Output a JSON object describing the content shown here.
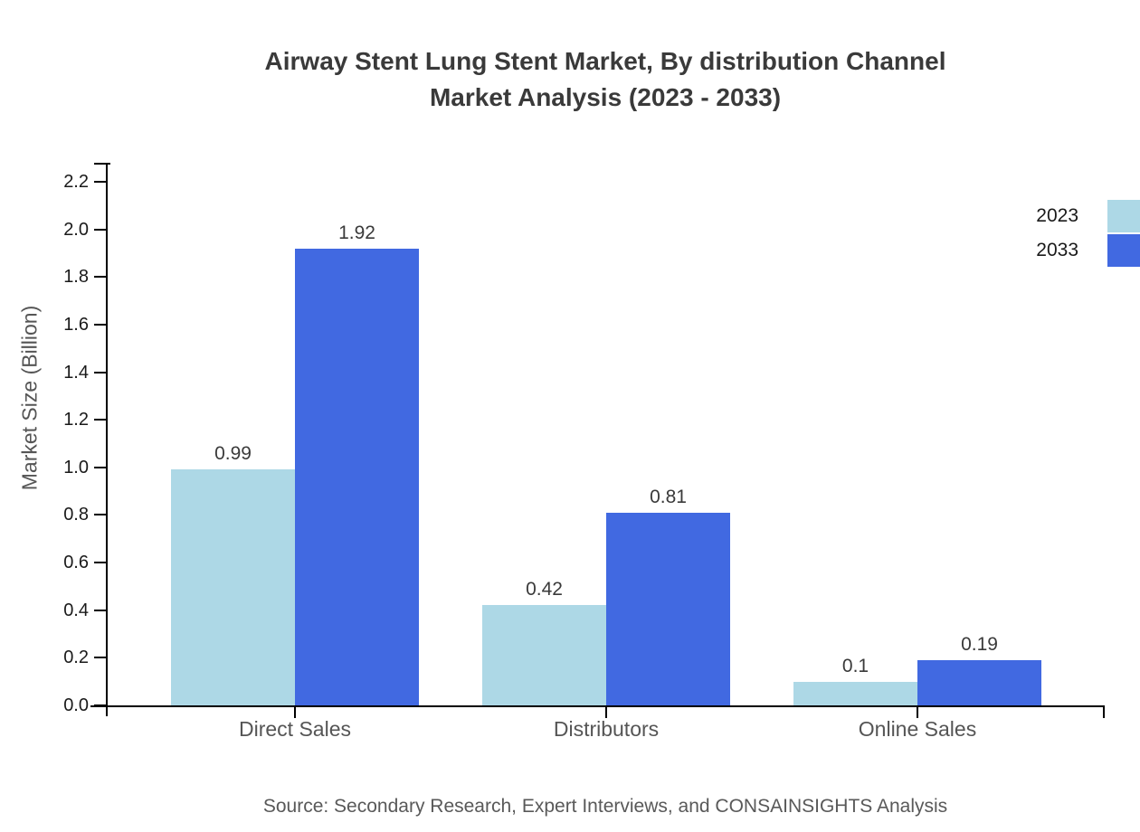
{
  "page": {
    "background": "#ffffff",
    "title_line1": "Airway Stent Lung Stent Market, By distribution Channel",
    "title_line2": "Market Analysis (2023 - 2033)"
  },
  "chart_data": {
    "type": "bar",
    "title_line1": "Airway Stent Lung Stent Market, By distribution Channel",
    "title_line2": "Market Analysis (2023 - 2033)",
    "categories": [
      "Direct Sales",
      "Distributors",
      "Online Sales"
    ],
    "series": [
      {
        "name": "2023",
        "color": "#ADD8E6",
        "values": [
          0.99,
          0.42,
          0.1
        ],
        "labels": [
          "0.99",
          "0.42",
          "0.1"
        ]
      },
      {
        "name": "2033",
        "color": "#4169E1",
        "values": [
          1.92,
          0.81,
          0.19
        ],
        "labels": [
          "1.92",
          "0.81",
          "0.19"
        ]
      }
    ],
    "xlabel": "",
    "ylabel": "Market Size (Billion)",
    "ylim": [
      0,
      2.28
    ],
    "yticks": {
      "min": 0,
      "max": 2.2,
      "step": 0.2,
      "decimals": 1
    },
    "ytick_labels": [
      "0.0",
      "0.2",
      "0.4",
      "0.6",
      "0.8",
      "1.0",
      "1.2",
      "1.4",
      "1.6",
      "1.8",
      "2.0",
      "2.2"
    ],
    "grid": false,
    "legend_position": "top-right-outside",
    "axis_color": "#000000"
  },
  "footer": {
    "source_text": "Source: Secondary Research, Expert Interviews, and CONSAINSIGHTS Analysis"
  },
  "colors": {
    "series_2023": "#ADD8E6",
    "series_2033": "#4169E1",
    "title_text": "#3a3a3a",
    "tick_text": "#1a1a1a",
    "category_text": "#555555",
    "source_text": "#595959"
  }
}
